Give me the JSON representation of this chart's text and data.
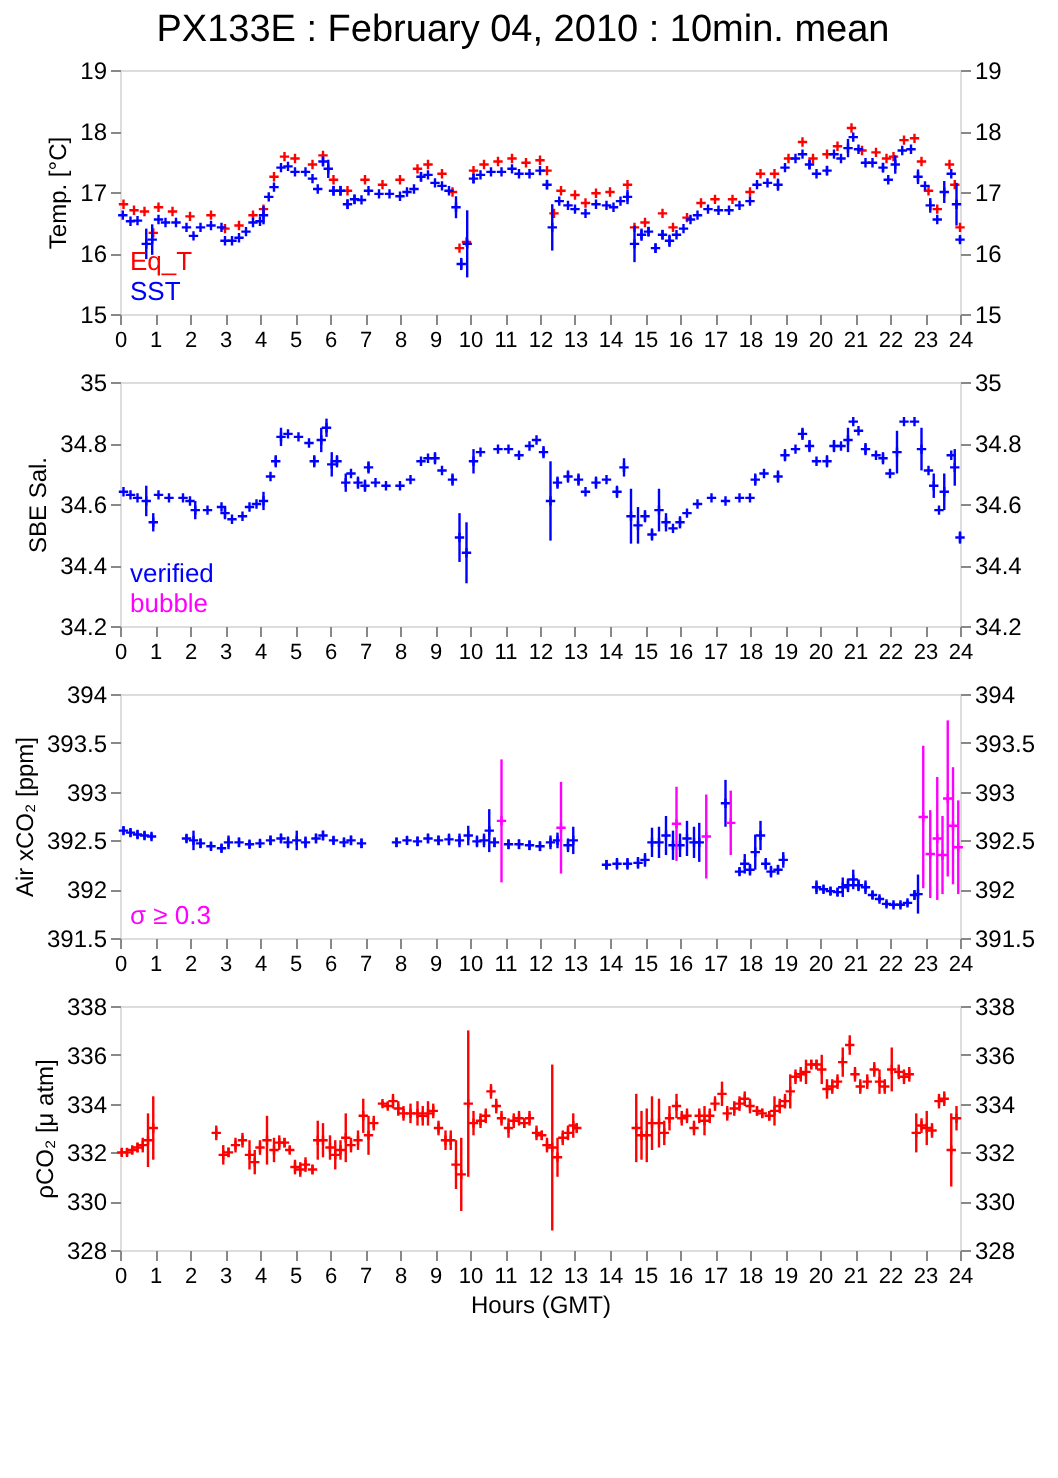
{
  "chart_data": [
    {
      "type": "scatter",
      "title": "PX133E : February 04, 2010 : 10min. mean",
      "ylabel": "Temp. [°C]",
      "xlim": [
        0,
        24
      ],
      "xticks": [
        0,
        1,
        2,
        3,
        4,
        5,
        6,
        7,
        8,
        9,
        10,
        11,
        12,
        13,
        14,
        15,
        16,
        17,
        18,
        19,
        20,
        21,
        22,
        23,
        24
      ],
      "ylim": [
        15,
        19
      ],
      "yticks": [
        15,
        16,
        17,
        18,
        19
      ],
      "y2lim": [
        15,
        19
      ],
      "y2ticks": [
        15,
        16,
        17,
        18,
        19
      ],
      "grid": false,
      "legend": "bottom left",
      "marker": "cross",
      "series": [
        {
          "name": "Eq_T",
          "color": "#ff0000",
          "x": [
            0.1,
            0.4,
            0.7,
            0.95,
            1.1,
            1.5,
            2.0,
            2.6,
            3.0,
            3.4,
            3.8,
            4.1,
            4.4,
            4.7,
            5.0,
            5.5,
            5.8,
            6.1,
            6.5,
            7.0,
            7.5,
            8.0,
            8.5,
            8.8,
            9.2,
            9.5,
            9.7,
            9.9,
            10.1,
            10.4,
            10.8,
            11.2,
            11.6,
            12.0,
            12.2,
            12.4,
            12.6,
            13.0,
            13.3,
            13.6,
            14.0,
            14.5,
            14.7,
            15.0,
            15.5,
            15.8,
            16.2,
            16.6,
            17.0,
            17.5,
            18.0,
            18.3,
            18.7,
            19.1,
            19.5,
            19.8,
            20.2,
            20.5,
            20.9,
            21.2,
            21.6,
            21.9,
            22.1,
            22.4,
            22.7,
            22.9,
            23.1,
            23.35,
            23.7,
            23.85,
            24.0
          ],
          "values": [
            16.8,
            16.7,
            16.68,
            16.33,
            16.75,
            16.68,
            16.6,
            16.62,
            16.4,
            16.45,
            16.62,
            16.72,
            17.25,
            17.58,
            17.55,
            17.45,
            17.6,
            17.2,
            17.02,
            17.2,
            17.12,
            17.2,
            17.38,
            17.45,
            17.3,
            17.0,
            16.08,
            16.18,
            17.35,
            17.45,
            17.5,
            17.55,
            17.48,
            17.52,
            17.35,
            16.65,
            17.02,
            16.95,
            16.82,
            16.98,
            17.0,
            17.12,
            16.42,
            16.5,
            16.65,
            16.42,
            16.58,
            16.82,
            16.88,
            16.88,
            17.0,
            17.3,
            17.3,
            17.55,
            17.82,
            17.55,
            17.62,
            17.75,
            18.05,
            17.68,
            17.65,
            17.55,
            17.58,
            17.85,
            17.88,
            17.5,
            17.02,
            16.72,
            17.45,
            17.12,
            16.42
          ]
        },
        {
          "name": "SST",
          "color": "#0000ff",
          "x": [
            0.08,
            0.3,
            0.5,
            0.75,
            0.92,
            1.1,
            1.3,
            1.6,
            1.9,
            2.1,
            2.3,
            2.6,
            2.9,
            3.0,
            3.2,
            3.4,
            3.6,
            3.8,
            4.0,
            4.1,
            4.25,
            4.4,
            4.6,
            4.8,
            5.0,
            5.3,
            5.5,
            5.65,
            5.8,
            5.95,
            6.1,
            6.3,
            6.5,
            6.7,
            6.9,
            7.1,
            7.4,
            7.7,
            8.0,
            8.2,
            8.4,
            8.6,
            8.8,
            9.0,
            9.2,
            9.4,
            9.6,
            9.75,
            9.92,
            10.1,
            10.3,
            10.6,
            10.9,
            11.2,
            11.4,
            11.7,
            12.0,
            12.2,
            12.35,
            12.55,
            12.8,
            13.0,
            13.3,
            13.6,
            13.9,
            14.1,
            14.3,
            14.5,
            14.7,
            14.9,
            15.1,
            15.3,
            15.5,
            15.7,
            15.9,
            16.1,
            16.3,
            16.5,
            16.8,
            17.1,
            17.4,
            17.7,
            18.0,
            18.2,
            18.5,
            18.8,
            19.0,
            19.3,
            19.5,
            19.7,
            19.9,
            20.2,
            20.4,
            20.6,
            20.8,
            20.95,
            21.1,
            21.3,
            21.5,
            21.8,
            21.95,
            22.15,
            22.35,
            22.6,
            22.8,
            23.0,
            23.15,
            23.35,
            23.55,
            23.75,
            23.9,
            24.0
          ],
          "values": [
            16.62,
            16.52,
            16.53,
            16.15,
            16.22,
            16.55,
            16.5,
            16.5,
            16.42,
            16.28,
            16.42,
            16.45,
            16.42,
            16.2,
            16.2,
            16.25,
            16.35,
            16.5,
            16.52,
            16.62,
            16.92,
            17.08,
            17.4,
            17.42,
            17.33,
            17.33,
            17.22,
            17.05,
            17.5,
            17.38,
            17.02,
            17.02,
            16.8,
            16.88,
            16.87,
            17.02,
            16.97,
            16.97,
            16.93,
            17.0,
            17.05,
            17.25,
            17.28,
            17.15,
            17.1,
            17.02,
            16.75,
            15.82,
            16.15,
            17.22,
            17.28,
            17.33,
            17.33,
            17.38,
            17.3,
            17.3,
            17.35,
            17.12,
            16.42,
            16.85,
            16.78,
            16.72,
            16.65,
            16.8,
            16.78,
            16.75,
            16.85,
            16.92,
            16.15,
            16.3,
            16.35,
            16.08,
            16.3,
            16.2,
            16.3,
            16.4,
            16.55,
            16.62,
            16.72,
            16.7,
            16.7,
            16.78,
            16.85,
            17.12,
            17.15,
            17.12,
            17.4,
            17.55,
            17.62,
            17.45,
            17.3,
            17.35,
            17.62,
            17.55,
            17.72,
            17.9,
            17.7,
            17.48,
            17.48,
            17.4,
            17.2,
            17.45,
            17.68,
            17.7,
            17.25,
            17.1,
            16.78,
            16.55,
            17.0,
            17.3,
            16.8,
            16.22
          ],
          "errors": [
            null,
            null,
            null,
            0.25,
            0.25,
            null,
            null,
            null,
            null,
            null,
            null,
            null,
            null,
            null,
            null,
            null,
            null,
            null,
            null,
            0.15,
            null,
            null,
            null,
            null,
            null,
            null,
            null,
            null,
            0.08,
            0.15,
            0.08,
            0.08,
            0.08,
            0.08,
            null,
            null,
            null,
            null,
            null,
            null,
            null,
            0.08,
            null,
            null,
            null,
            null,
            0.18,
            0.1,
            0.55,
            0.08,
            null,
            null,
            null,
            null,
            null,
            null,
            null,
            0.08,
            0.38,
            null,
            null,
            null,
            null,
            null,
            null,
            null,
            null,
            0.12,
            0.3,
            0.1,
            0.08,
            0.08,
            0.08,
            0.1,
            null,
            null,
            null,
            null,
            null,
            null,
            null,
            null,
            null,
            null,
            null,
            0.1,
            null,
            null,
            null,
            0.08,
            null,
            0.08,
            null,
            null,
            0.15,
            null,
            null,
            null,
            null,
            0.08,
            null,
            0.15,
            null,
            null,
            0.12,
            null,
            0.12,
            null,
            0.18,
            null,
            0.35,
            0.05
          ]
        }
      ]
    },
    {
      "type": "scatter",
      "ylabel": "SBE Sal.",
      "xlim": [
        0,
        24
      ],
      "xticks": [
        0,
        1,
        2,
        3,
        4,
        5,
        6,
        7,
        8,
        9,
        10,
        11,
        12,
        13,
        14,
        15,
        16,
        17,
        18,
        19,
        20,
        21,
        22,
        23,
        24
      ],
      "ylim": [
        34.2,
        35
      ],
      "yticks": [
        34.2,
        34.4,
        34.6,
        34.8,
        35
      ],
      "y2lim": [
        34.2,
        35
      ],
      "y2ticks": [
        34.2,
        34.4,
        34.6,
        34.8,
        35
      ],
      "grid": false,
      "legend": "bottom left",
      "marker": "cross",
      "series": [
        {
          "name": "verified",
          "color": "#0000ff",
          "x": [
            0.1,
            0.3,
            0.5,
            0.75,
            0.95,
            1.1,
            1.4,
            1.8,
            2.0,
            2.15,
            2.5,
            2.9,
            3.0,
            3.2,
            3.5,
            3.7,
            3.9,
            4.1,
            4.3,
            4.45,
            4.6,
            4.8,
            5.1,
            5.4,
            5.55,
            5.75,
            5.9,
            6.05,
            6.2,
            6.45,
            6.6,
            6.8,
            7.0,
            7.1,
            7.3,
            7.6,
            8.0,
            8.3,
            8.6,
            8.8,
            9.0,
            9.2,
            9.5,
            9.7,
            9.9,
            10.1,
            10.3,
            10.8,
            11.1,
            11.4,
            11.7,
            11.9,
            12.1,
            12.3,
            12.5,
            12.8,
            13.1,
            13.3,
            13.6,
            13.9,
            14.2,
            14.4,
            14.6,
            14.8,
            15.0,
            15.2,
            15.4,
            15.6,
            15.8,
            16.0,
            16.2,
            16.5,
            16.9,
            17.3,
            17.7,
            18.0,
            18.15,
            18.4,
            18.8,
            19.0,
            19.3,
            19.5,
            19.7,
            19.9,
            20.2,
            20.4,
            20.6,
            20.8,
            20.95,
            21.1,
            21.3,
            21.6,
            21.8,
            22.0,
            22.2,
            22.4,
            22.7,
            22.9,
            23.1,
            23.25,
            23.4,
            23.55,
            23.75,
            23.85,
            24.0
          ],
          "values": [
            34.64,
            34.63,
            34.62,
            34.61,
            34.54,
            34.63,
            34.62,
            34.62,
            34.61,
            34.58,
            34.58,
            34.59,
            34.57,
            34.55,
            34.56,
            34.59,
            34.6,
            34.61,
            34.69,
            34.74,
            34.82,
            34.83,
            34.82,
            34.8,
            34.74,
            34.81,
            34.85,
            34.73,
            34.74,
            34.67,
            34.7,
            34.67,
            34.66,
            34.72,
            34.67,
            34.66,
            34.66,
            34.68,
            34.74,
            34.75,
            34.75,
            34.71,
            34.68,
            34.49,
            34.44,
            34.74,
            34.77,
            34.78,
            34.78,
            34.76,
            34.79,
            34.81,
            34.77,
            34.61,
            34.67,
            34.69,
            34.68,
            34.64,
            34.67,
            34.68,
            34.64,
            34.72,
            34.56,
            34.53,
            34.56,
            34.5,
            34.58,
            34.54,
            34.52,
            34.54,
            34.57,
            34.6,
            34.62,
            34.61,
            34.62,
            34.62,
            34.68,
            34.7,
            34.69,
            34.76,
            34.78,
            34.83,
            34.79,
            34.74,
            34.74,
            34.79,
            34.79,
            34.81,
            34.87,
            34.84,
            34.78,
            34.76,
            34.75,
            34.7,
            34.77,
            34.87,
            34.87,
            34.78,
            34.71,
            34.66,
            34.58,
            34.64,
            34.76,
            34.72,
            34.49
          ],
          "errors": [
            null,
            null,
            null,
            0.05,
            0.03,
            null,
            null,
            null,
            null,
            0.03,
            null,
            null,
            0.02,
            null,
            null,
            null,
            null,
            0.03,
            null,
            0.02,
            0.03,
            null,
            null,
            null,
            0.02,
            0.04,
            0.03,
            0.04,
            0.02,
            0.03,
            null,
            0.02,
            0.02,
            0.02,
            null,
            null,
            null,
            null,
            null,
            null,
            0.02,
            null,
            0.02,
            0.08,
            0.1,
            0.04,
            null,
            null,
            null,
            null,
            null,
            null,
            0.02,
            0.13,
            0.02,
            0.02,
            0.02,
            null,
            0.02,
            null,
            0.02,
            0.03,
            0.09,
            0.06,
            0.02,
            0.02,
            0.07,
            0.03,
            null,
            0.02,
            null,
            null,
            null,
            null,
            null,
            null,
            0.02,
            null,
            0.02,
            0.02,
            null,
            0.02,
            0.02,
            null,
            0.02,
            0.02,
            null,
            0.04,
            null,
            null,
            0.02,
            null,
            0.02,
            null,
            0.07,
            null,
            null,
            0.07,
            null,
            0.04,
            null,
            0.06,
            null,
            0.06,
            0.02
          ]
        },
        {
          "name": "bubble",
          "color": "#ff00ff"
        }
      ]
    },
    {
      "type": "scatter",
      "ylabel": "Air xCO₂ [ppm]",
      "xlim": [
        0,
        24
      ],
      "xticks": [
        0,
        1,
        2,
        3,
        4,
        5,
        6,
        7,
        8,
        9,
        10,
        11,
        12,
        13,
        14,
        15,
        16,
        17,
        18,
        19,
        20,
        21,
        22,
        23,
        24
      ],
      "ylim": [
        391.5,
        394
      ],
      "yticks": [
        391.5,
        392,
        392.5,
        393,
        393.5,
        394
      ],
      "y2lim": [
        391.5,
        394
      ],
      "y2ticks": [
        391.5,
        392,
        392.5,
        393,
        393.5,
        394
      ],
      "grid": false,
      "legend": "bottom left",
      "marker": "cross",
      "series": [
        {
          "color": "#0000ff",
          "x": [
            0.1,
            0.3,
            0.5,
            0.7,
            0.9,
            1.9,
            2.1,
            2.3,
            2.6,
            2.9,
            3.1,
            3.4,
            3.7,
            4.0,
            4.3,
            4.6,
            4.8,
            5.05,
            5.3,
            5.6,
            5.8,
            6.1,
            6.4,
            6.6,
            6.9,
            7.9,
            8.2,
            8.5,
            8.8,
            9.1,
            9.4,
            9.7,
            9.95,
            10.2,
            10.4,
            10.55,
            10.7,
            11.1,
            11.4,
            11.7,
            12.0,
            12.3,
            12.5,
            12.8,
            12.95,
            13.9,
            14.2,
            14.5,
            14.8,
            15.0,
            15.2,
            15.4,
            15.6,
            15.8,
            16.0,
            16.2,
            16.4,
            16.55,
            17.3,
            17.7,
            17.85,
            18.0,
            18.15,
            18.3,
            18.45,
            18.6,
            18.8,
            18.95,
            19.9,
            20.1,
            20.3,
            20.5,
            20.65,
            20.8,
            20.95,
            21.1,
            21.3,
            21.5,
            21.7,
            21.9,
            22.1,
            22.3,
            22.5,
            22.7,
            22.8
          ],
          "values": [
            392.6,
            392.58,
            392.56,
            392.55,
            392.54,
            392.52,
            392.5,
            392.47,
            392.44,
            392.42,
            392.48,
            392.48,
            392.46,
            392.47,
            392.5,
            392.52,
            392.48,
            392.5,
            392.48,
            392.52,
            392.55,
            392.5,
            392.48,
            392.5,
            392.47,
            392.48,
            392.5,
            392.49,
            392.52,
            392.5,
            392.51,
            392.5,
            392.55,
            392.49,
            392.5,
            392.6,
            392.48,
            392.46,
            392.46,
            392.45,
            392.44,
            392.48,
            392.5,
            392.45,
            392.5,
            392.25,
            392.26,
            392.26,
            392.27,
            392.3,
            392.48,
            392.48,
            392.55,
            392.45,
            392.45,
            392.52,
            392.48,
            392.48,
            392.88,
            392.18,
            392.26,
            392.2,
            392.38,
            392.55,
            392.26,
            392.18,
            392.2,
            392.3,
            392.02,
            392.0,
            391.98,
            391.97,
            392.02,
            392.04,
            392.1,
            392.04,
            392.02,
            391.94,
            391.9,
            391.85,
            391.84,
            391.84,
            391.86,
            391.94,
            391.95
          ],
          "errors": [
            0.04,
            0.04,
            0.04,
            0.04,
            0.03,
            0.04,
            0.1,
            0.05,
            0.04,
            0.04,
            0.07,
            0.05,
            0.04,
            0.04,
            0.05,
            0.05,
            0.06,
            0.1,
            0.06,
            0.05,
            0.05,
            0.04,
            0.05,
            0.05,
            0.05,
            0.05,
            0.04,
            0.05,
            0.05,
            0.05,
            0.06,
            0.07,
            0.1,
            0.06,
            0.07,
            0.22,
            0.05,
            0.05,
            0.05,
            0.05,
            0.05,
            0.07,
            0.08,
            0.07,
            0.14,
            0.05,
            0.06,
            0.06,
            0.06,
            0.07,
            0.15,
            0.16,
            0.2,
            0.15,
            0.12,
            0.18,
            0.16,
            0.2,
            0.24,
            0.04,
            0.1,
            0.06,
            0.18,
            0.15,
            0.06,
            0.06,
            0.05,
            0.08,
            0.07,
            0.04,
            0.04,
            0.04,
            0.1,
            0.07,
            0.1,
            0.06,
            0.07,
            0.04,
            0.03,
            0.03,
            0.03,
            0.03,
            0.03,
            0.05,
            0.2
          ]
        },
        {
          "name": "σ ≥ 0.3",
          "color": "#ff00ff",
          "x": [
            10.9,
            12.6,
            15.9,
            16.75,
            17.45,
            22.95,
            23.15,
            23.35,
            23.5,
            23.65,
            23.8,
            23.95
          ],
          "values": [
            392.7,
            392.63,
            392.67,
            392.54,
            392.68,
            392.74,
            392.36,
            392.52,
            392.35,
            392.93,
            392.65,
            392.43
          ],
          "errors": [
            0.63,
            0.47,
            0.38,
            0.43,
            0.33,
            0.73,
            0.45,
            0.63,
            0.4,
            0.8,
            0.6,
            0.48
          ]
        }
      ]
    },
    {
      "type": "scatter",
      "ylabel": "ρCO₂ [μ atm]",
      "xlabel": "Hours (GMT)",
      "xlim": [
        0,
        24
      ],
      "xticks": [
        0,
        1,
        2,
        3,
        4,
        5,
        6,
        7,
        8,
        9,
        10,
        11,
        12,
        13,
        14,
        15,
        16,
        17,
        18,
        19,
        20,
        21,
        22,
        23,
        24
      ],
      "ylim": [
        328,
        338
      ],
      "yticks": [
        328,
        330,
        332,
        334,
        336,
        338
      ],
      "y2lim": [
        328,
        338
      ],
      "y2ticks": [
        328,
        330,
        332,
        334,
        336,
        338
      ],
      "grid": false,
      "marker": "cross",
      "series": [
        {
          "color": "#ff0000",
          "x": [
            0.05,
            0.2,
            0.35,
            0.5,
            0.65,
            0.8,
            0.95,
            2.75,
            2.95,
            3.1,
            3.3,
            3.5,
            3.7,
            3.85,
            4.0,
            4.2,
            4.4,
            4.55,
            4.7,
            4.85,
            5.0,
            5.15,
            5.3,
            5.5,
            5.65,
            5.8,
            6.0,
            6.15,
            6.3,
            6.45,
            6.6,
            6.8,
            6.95,
            7.1,
            7.25,
            7.5,
            7.65,
            7.8,
            7.95,
            8.1,
            8.3,
            8.5,
            8.65,
            8.8,
            8.95,
            9.1,
            9.3,
            9.45,
            9.6,
            9.75,
            9.95,
            10.1,
            10.3,
            10.45,
            10.6,
            10.75,
            10.9,
            11.1,
            11.25,
            11.4,
            11.55,
            11.7,
            11.9,
            12.05,
            12.2,
            12.35,
            12.5,
            12.65,
            12.8,
            12.95,
            13.05,
            14.75,
            14.9,
            15.05,
            15.2,
            15.4,
            15.55,
            15.7,
            15.9,
            16.05,
            16.2,
            16.4,
            16.55,
            16.7,
            16.85,
            17.0,
            17.2,
            17.35,
            17.55,
            17.7,
            17.85,
            18.0,
            18.2,
            18.35,
            18.55,
            18.7,
            18.85,
            19.0,
            19.15,
            19.3,
            19.45,
            19.6,
            19.75,
            19.9,
            20.05,
            20.2,
            20.35,
            20.5,
            20.65,
            20.85,
            21.0,
            21.15,
            21.35,
            21.55,
            21.7,
            21.85,
            22.05,
            22.25,
            22.4,
            22.55,
            22.75,
            22.9,
            23.05,
            23.2,
            23.4,
            23.55,
            23.75,
            23.9
          ],
          "values": [
            332.0,
            332.0,
            332.1,
            332.2,
            332.3,
            332.5,
            333.0,
            332.8,
            331.9,
            332.0,
            332.3,
            332.5,
            331.9,
            331.6,
            332.2,
            332.5,
            332.1,
            332.4,
            332.4,
            332.1,
            331.4,
            331.3,
            331.5,
            331.3,
            332.5,
            332.5,
            332.2,
            331.9,
            332.1,
            332.6,
            332.3,
            332.5,
            333.5,
            332.7,
            333.2,
            334.0,
            333.9,
            334.1,
            333.8,
            333.6,
            333.6,
            333.6,
            333.5,
            333.6,
            333.7,
            333.0,
            332.5,
            332.5,
            331.5,
            331.1,
            334.0,
            333.2,
            333.3,
            333.5,
            334.5,
            333.9,
            333.4,
            333.0,
            333.3,
            333.4,
            333.2,
            333.4,
            332.8,
            332.7,
            332.3,
            332.2,
            331.8,
            332.6,
            332.8,
            333.1,
            333.0,
            333.0,
            332.7,
            332.7,
            333.2,
            333.2,
            332.8,
            333.4,
            333.9,
            333.4,
            333.5,
            333.0,
            333.5,
            333.3,
            333.5,
            334.0,
            334.4,
            333.6,
            333.8,
            334.0,
            334.2,
            333.9,
            333.7,
            333.6,
            333.5,
            333.7,
            333.9,
            334.1,
            334.5,
            335.1,
            335.2,
            335.3,
            335.6,
            335.6,
            335.4,
            334.6,
            334.7,
            334.9,
            335.7,
            336.4,
            335.2,
            334.7,
            334.9,
            335.4,
            334.9,
            334.7,
            335.4,
            335.3,
            335.1,
            335.2,
            332.8,
            333.1,
            333.0,
            332.9,
            334.1,
            334.2,
            332.1,
            333.4
          ],
          "errors": [
            0.15,
            0.15,
            0.15,
            0.2,
            0.3,
            1.1,
            1.3,
            0.3,
            0.4,
            0.2,
            0.3,
            0.3,
            0.6,
            0.5,
            0.3,
            1.0,
            0.5,
            0.3,
            0.2,
            0.15,
            0.3,
            0.3,
            0.3,
            0.2,
            0.8,
            0.7,
            0.5,
            0.6,
            0.4,
            1.0,
            0.3,
            0.4,
            0.7,
            0.8,
            0.3,
            0.1,
            0.1,
            0.3,
            0.3,
            0.3,
            0.4,
            0.5,
            0.4,
            0.5,
            0.3,
            0.3,
            0.4,
            0.4,
            1.0,
            1.5,
            3.0,
            0.5,
            0.3,
            0.3,
            0.3,
            0.3,
            0.3,
            0.4,
            0.3,
            0.3,
            0.2,
            0.3,
            0.3,
            0.2,
            0.3,
            3.4,
            0.8,
            0.3,
            0.3,
            0.5,
            0.2,
            1.4,
            1.0,
            1.1,
            1.1,
            1.0,
            0.5,
            0.5,
            0.5,
            0.3,
            0.3,
            0.3,
            0.3,
            0.6,
            0.3,
            0.3,
            0.5,
            0.3,
            0.3,
            0.3,
            0.3,
            0.3,
            0.2,
            0.2,
            0.2,
            0.6,
            0.3,
            0.3,
            0.7,
            0.3,
            0.3,
            0.5,
            0.2,
            0.2,
            0.6,
            0.4,
            0.3,
            0.3,
            0.6,
            0.4,
            0.3,
            0.3,
            0.3,
            0.3,
            0.5,
            0.3,
            0.9,
            0.3,
            0.3,
            0.3,
            0.8,
            0.3,
            0.7,
            0.3,
            0.3,
            0.3,
            1.5,
            0.5
          ]
        }
      ]
    }
  ]
}
